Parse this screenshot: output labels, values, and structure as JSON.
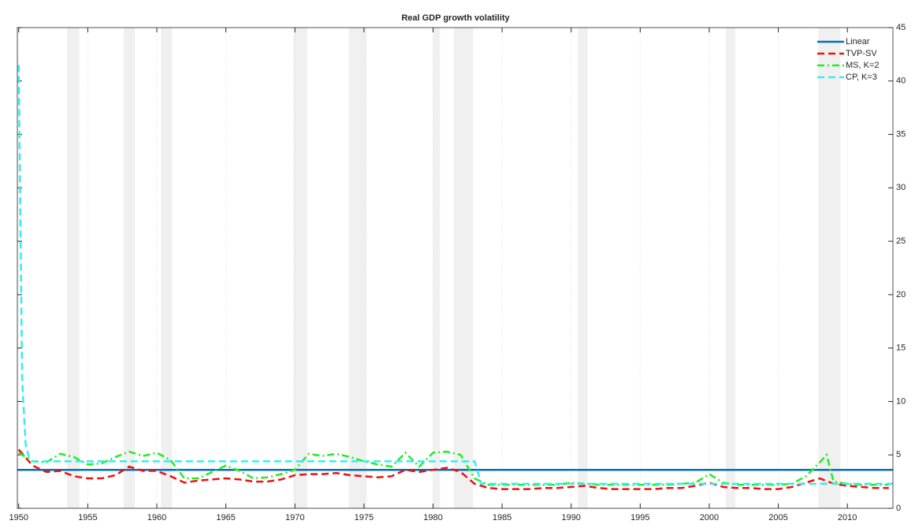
{
  "chart_data": {
    "type": "line",
    "title": "Real GDP growth volatility",
    "xlim": [
      1949.9,
      2013.3
    ],
    "xticks": [
      1950,
      1955,
      1960,
      1965,
      1970,
      1975,
      1980,
      1985,
      1990,
      1995,
      2000,
      2005,
      2010
    ],
    "ylim": [
      0,
      45
    ],
    "yticks": [
      0,
      5,
      10,
      15,
      20,
      25,
      30,
      35,
      40,
      45
    ],
    "y_axis_side": "right",
    "grid": "x",
    "legend": "top-right",
    "recessions": [
      [
        1953.5,
        1954.4
      ],
      [
        1957.6,
        1958.4
      ],
      [
        1960.3,
        1961.1
      ],
      [
        1969.9,
        1970.9
      ],
      [
        1973.9,
        1975.2
      ],
      [
        1980.0,
        1980.5
      ],
      [
        1981.5,
        1982.9
      ],
      [
        1990.5,
        1991.2
      ],
      [
        2001.2,
        2001.9
      ],
      [
        2007.9,
        2009.5
      ]
    ],
    "recession_color": "#f0f0f0",
    "series": [
      {
        "name": "Linear",
        "color": "#0072bd",
        "dash": "",
        "x": [
          1949.9,
          2013.3
        ],
        "values": [
          3.6,
          3.6
        ]
      },
      {
        "name": "TVP-SV",
        "color": "#ee1111",
        "dash": "9 5",
        "x": [
          1950,
          1951,
          1952,
          1953,
          1954,
          1955,
          1956,
          1957,
          1958,
          1959,
          1960,
          1961,
          1962,
          1963,
          1964,
          1965,
          1966,
          1967,
          1968,
          1969,
          1970,
          1971,
          1972,
          1973,
          1974,
          1975,
          1976,
          1977,
          1978,
          1979,
          1980,
          1981,
          1982,
          1983,
          1984,
          1985,
          1986,
          1987,
          1988,
          1989,
          1990,
          1991,
          1992,
          1993,
          1994,
          1995,
          1996,
          1997,
          1998,
          1999,
          2000,
          2001,
          2002,
          2003,
          2004,
          2005,
          2006,
          2007,
          2008,
          2009,
          2010,
          2011,
          2012,
          2013
        ],
        "values": [
          5.5,
          4.0,
          3.4,
          3.5,
          3.0,
          2.8,
          2.8,
          3.1,
          3.9,
          3.5,
          3.5,
          3.0,
          2.4,
          2.6,
          2.7,
          2.8,
          2.7,
          2.5,
          2.5,
          2.7,
          3.1,
          3.2,
          3.2,
          3.3,
          3.1,
          3.0,
          2.9,
          3.0,
          3.6,
          3.4,
          3.6,
          3.8,
          3.4,
          2.3,
          1.9,
          1.8,
          1.8,
          1.8,
          1.9,
          1.9,
          2.0,
          2.1,
          1.9,
          1.8,
          1.8,
          1.8,
          1.8,
          1.9,
          1.9,
          2.1,
          2.4,
          2.0,
          1.9,
          1.9,
          1.8,
          1.8,
          2.0,
          2.4,
          2.8,
          2.3,
          2.1,
          2.0,
          1.9,
          1.9
        ]
      },
      {
        "name": "MS, K=2",
        "color": "#22ee22",
        "dash": "9 4 2 4",
        "x": [
          1950,
          1951,
          1952,
          1953,
          1954,
          1955,
          1956,
          1957,
          1958,
          1959,
          1960,
          1961,
          1962,
          1963,
          1964,
          1965,
          1966,
          1967,
          1968,
          1969,
          1970,
          1971,
          1972,
          1973,
          1974,
          1975,
          1976,
          1977,
          1978,
          1979,
          1980,
          1981,
          1982,
          1983,
          1984,
          1985,
          1986,
          1987,
          1988,
          1989,
          1990,
          1991,
          1992,
          1993,
          1994,
          1995,
          1996,
          1997,
          1998,
          1999,
          2000,
          2001,
          2002,
          2003,
          2004,
          2005,
          2006,
          2007,
          2008,
          2008.5,
          2009,
          2010,
          2011,
          2012,
          2013
        ],
        "values": [
          5.2,
          4.4,
          4.3,
          5.1,
          4.8,
          4.1,
          4.2,
          4.8,
          5.3,
          4.9,
          5.2,
          4.5,
          2.8,
          2.8,
          3.4,
          4.0,
          3.5,
          2.8,
          2.9,
          3.2,
          3.6,
          5.1,
          4.9,
          5.1,
          4.8,
          4.4,
          4.1,
          3.9,
          5.2,
          3.9,
          5.2,
          5.3,
          5.0,
          2.8,
          2.2,
          2.2,
          2.2,
          2.2,
          2.2,
          2.2,
          2.4,
          2.3,
          2.2,
          2.2,
          2.2,
          2.2,
          2.2,
          2.2,
          2.3,
          2.4,
          3.2,
          2.4,
          2.2,
          2.2,
          2.2,
          2.2,
          2.3,
          3.0,
          4.3,
          5.0,
          2.5,
          2.3,
          2.2,
          2.2,
          2.2
        ]
      },
      {
        "name": "CP, K=3",
        "color": "#33eeee",
        "dash": "9 5",
        "x": [
          1950,
          1950.25,
          1950.5,
          1950.75,
          1951,
          1983,
          1983.5,
          2013.3
        ],
        "values": [
          41.5,
          12,
          6,
          4.7,
          4.4,
          4.4,
          2.3,
          2.3
        ]
      }
    ]
  }
}
